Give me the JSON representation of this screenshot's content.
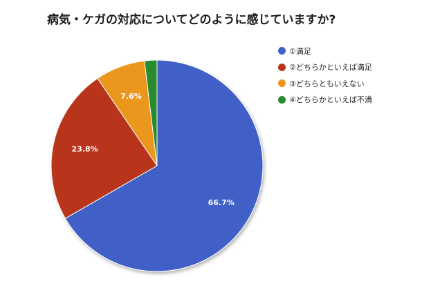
{
  "chart_data": {
    "type": "pie",
    "title": "病気・ケガの対応についてどのように感じていますか?",
    "categories": [
      "①満足",
      "②どちらかといえば満足",
      "③どちらともいえない",
      "④どちらかといえば不満"
    ],
    "values": [
      66.7,
      23.8,
      7.6,
      1.9
    ],
    "data_labels": [
      "66.7%",
      "23.8%",
      "7.6%",
      ""
    ],
    "colors": [
      "#3f61c8",
      "#b8351a",
      "#eb961a",
      "#2c8a2e"
    ],
    "legend_position": "right"
  }
}
